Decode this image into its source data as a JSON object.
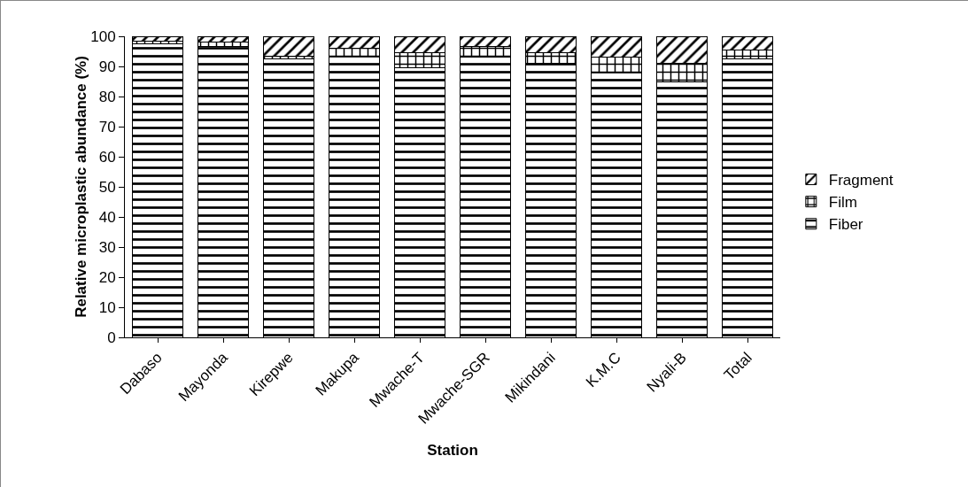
{
  "chart_data": {
    "type": "bar",
    "stacked": true,
    "xlabel": "Station",
    "ylabel": "Relative microplastic abundance (%)",
    "categories": [
      "Dabaso",
      "Mayonda",
      "Kirepwe",
      "Makupa",
      "Mwache-T",
      "Mwache-SGR",
      "Mikindani",
      "K.M.C",
      "Nyali-B",
      "Total"
    ],
    "series": [
      {
        "name": "Fiber",
        "color": "#000000",
        "values": [
          97.5,
          96.5,
          92.5,
          93.5,
          89.5,
          93,
          91,
          88,
          85,
          92.5
        ]
      },
      {
        "name": "Film",
        "color": "#000000",
        "values": [
          1,
          1.5,
          1,
          2.5,
          5,
          3.5,
          3.5,
          5,
          6,
          3
        ]
      },
      {
        "name": "Fragment",
        "color": "#000000",
        "values": [
          1.5,
          2,
          6.5,
          4,
          5.5,
          3.5,
          5.5,
          7,
          9,
          4.5
        ]
      }
    ],
    "ylim": [
      0,
      100
    ],
    "yticks": [
      0,
      10,
      20,
      30,
      40,
      50,
      60,
      70,
      80,
      90,
      100
    ],
    "grid": false,
    "legend": "right"
  }
}
